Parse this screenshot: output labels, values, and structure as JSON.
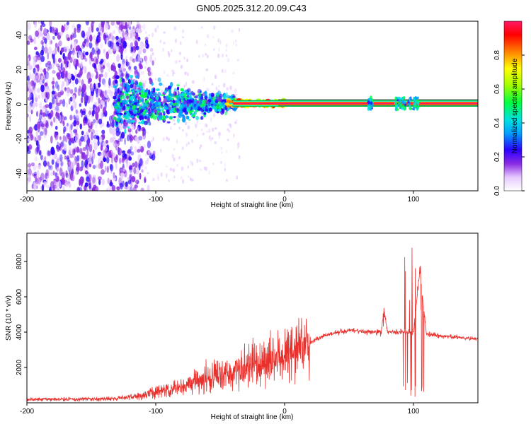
{
  "title": "GN05.2025.312.20.09.C43",
  "chart_data": [
    {
      "type": "heatmap",
      "xlabel": "Height of straight line (km)",
      "ylabel": "Frequency (Hz)",
      "xlim": [
        -200,
        150
      ],
      "ylim": [
        -50,
        48
      ],
      "xticks": [
        "-200",
        "-100",
        "0",
        "100"
      ],
      "yticks": [
        "-40",
        "-20",
        "0",
        "20",
        "40"
      ],
      "colorbar": {
        "label": "Normalized spectral amplitude",
        "range": [
          0,
          1
        ],
        "ticks": [
          "0.0",
          "0.2",
          "0.4",
          "0.6",
          "0.8"
        ]
      },
      "regions": [
        {
          "name": "noise",
          "x": [
            -200,
            -108
          ],
          "freq_spread": 48,
          "amplitude": 0.1
        },
        {
          "name": "onset",
          "x": [
            -130,
            -40
          ],
          "freq_spread": 12,
          "amplitude": 0.3
        },
        {
          "name": "carrier",
          "x": [
            -40,
            150
          ],
          "freq_center": 0.5,
          "amplitude": 0.9
        },
        {
          "name": "fade-1",
          "x": [
            65,
            68
          ],
          "amplitude": 0.4
        },
        {
          "name": "fade-2",
          "x": [
            88,
            104
          ],
          "amplitude": 0.4
        }
      ]
    },
    {
      "type": "line",
      "xlabel": "Height of straight line (km)",
      "ylabel": "SNR (10 * v/v)",
      "xlim": [
        -200,
        150
      ],
      "ylim": [
        0,
        9600
      ],
      "xticks": [
        "-200",
        "-100",
        "0",
        "100"
      ],
      "yticks": [
        "2000",
        "4000",
        "6000",
        "8000"
      ],
      "color": "#e8302c",
      "series": [
        {
          "name": "SNR envelope",
          "x": [
            -200,
            -150,
            -120,
            -100,
            -80,
            -60,
            -40,
            -20,
            0,
            20,
            30,
            50,
            75,
            77,
            80,
            95,
            100,
            105,
            110,
            120,
            150
          ],
          "values": [
            200,
            200,
            300,
            600,
            900,
            1400,
            1800,
            2300,
            2700,
            3400,
            3800,
            4100,
            4000,
            5200,
            4000,
            4000,
            4000,
            7500,
            3900,
            3800,
            3600
          ]
        }
      ]
    }
  ]
}
